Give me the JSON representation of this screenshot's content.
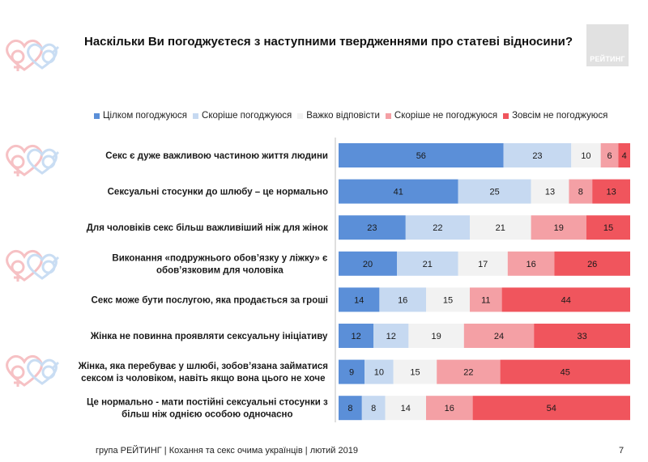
{
  "title": "Наскільки Ви погоджуєтеся з наступними твердженнями про статеві відносини?",
  "logo": {
    "text": "РЕЙТИНГ"
  },
  "footer": {
    "source": "група РЕЙТИНГ | Кохання та секс очима українців | лютий 2019",
    "page": "7"
  },
  "colors": [
    "#5b8fd8",
    "#c6d9f1",
    "#f2f2f2",
    "#f4a0a5",
    "#f0555d"
  ],
  "chart_data": {
    "type": "bar",
    "orientation": "horizontal",
    "stacked": true,
    "normalized": true,
    "legend_position": "top",
    "categories": [
      [
        "Секс є дуже важливою частиною життя людини"
      ],
      [
        "Сексуальні стосунки до шлюбу – це нормально"
      ],
      [
        "Для чоловіків секс більш важливіший ніж для жінок"
      ],
      [
        "Виконання «подружнього обов’язку у ліжку» є",
        "обов’язковим для чоловіка"
      ],
      [
        "Секс може бути послугою, яка продається за гроші"
      ],
      [
        "Жінка не повинна проявляти сексуальну ініціативу"
      ],
      [
        "Жінка, яка перебуває у шлюбі, зобов’язана займатися",
        "сексом із чоловіком, навіть якщо вона цього не хоче"
      ],
      [
        "Це нормально - мати постійні сексуальні стосунки з",
        "більш ніж однією особою одночасно"
      ]
    ],
    "series": [
      {
        "name": "Цілком погоджуюся",
        "color": "#5b8fd8",
        "values": [
          56,
          41,
          23,
          20,
          14,
          12,
          9,
          8
        ]
      },
      {
        "name": "Скоріше погоджуюся",
        "color": "#c6d9f1",
        "values": [
          23,
          25,
          22,
          21,
          16,
          12,
          10,
          8
        ]
      },
      {
        "name": "Важко відповісти",
        "color": "#f2f2f2",
        "values": [
          10,
          13,
          21,
          17,
          15,
          19,
          15,
          14
        ]
      },
      {
        "name": "Скоріше не погоджуюся",
        "color": "#f4a0a5",
        "values": [
          6,
          8,
          19,
          16,
          11,
          24,
          22,
          16
        ]
      },
      {
        "name": "Зовсім не погоджуюся",
        "color": "#f0555d",
        "values": [
          4,
          13,
          15,
          26,
          44,
          33,
          45,
          54
        ]
      }
    ]
  }
}
